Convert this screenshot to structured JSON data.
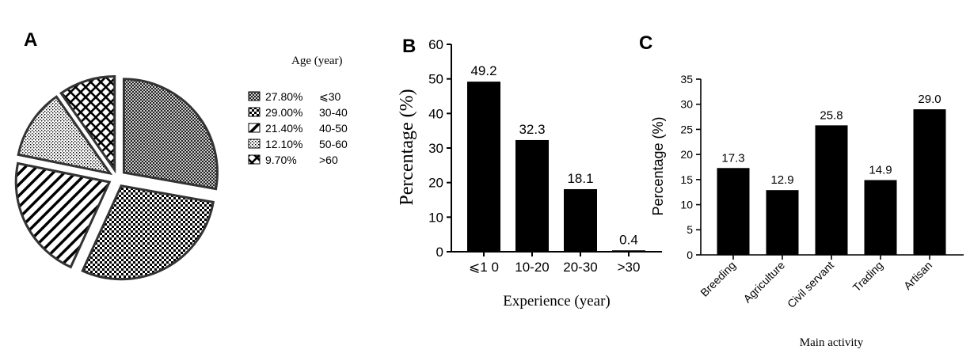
{
  "chart_data": [
    {
      "panel_label": "A",
      "type": "pie",
      "legend_title": "Age (year)",
      "legend_position": "right",
      "slices": [
        {
          "pct_label": "27.80%",
          "category": "⩽30",
          "value": 27.8,
          "pattern": "dense-crosshatch"
        },
        {
          "pct_label": "29.00%",
          "category": "30-40",
          "value": 29.0,
          "pattern": "checker"
        },
        {
          "pct_label": "21.40%",
          "category": "40-50",
          "value": 21.4,
          "pattern": "diagonal"
        },
        {
          "pct_label": "12.10%",
          "category": "50-60",
          "value": 12.1,
          "pattern": "dots"
        },
        {
          "pct_label": "9.70%",
          "category": ">60",
          "value": 9.7,
          "pattern": "grid"
        }
      ]
    },
    {
      "panel_label": "B",
      "type": "bar",
      "categories": [
        "⩽1 0",
        "10-20",
        "20-30",
        ">30"
      ],
      "values": [
        49.2,
        32.3,
        18.1,
        0.4
      ],
      "value_labels": [
        "49.2",
        "32.3",
        "18.1",
        "0.4"
      ],
      "xlabel": "Experience (year)",
      "ylabel": "Percentage (%)",
      "ylim": [
        0,
        60
      ],
      "yticks": [
        "0",
        "10",
        "20",
        "30",
        "40",
        "50",
        "60"
      ],
      "grid": false
    },
    {
      "panel_label": "C",
      "type": "bar",
      "categories": [
        "Breeding",
        "Agriculture",
        "Civil servant",
        "Trading",
        "Artisan"
      ],
      "values": [
        17.3,
        12.9,
        25.8,
        14.9,
        29.0
      ],
      "value_labels": [
        "17.3",
        "12.9",
        "25.8",
        "14.9",
        "29.0"
      ],
      "xlabel": "Main activity",
      "ylabel": "Percentage (%)",
      "ylim": [
        0,
        35
      ],
      "yticks": [
        "0",
        "5",
        "10",
        "15",
        "20",
        "25",
        "30",
        "35"
      ],
      "grid": false
    }
  ],
  "colors": {
    "bar": "#000000",
    "ink": "#000000",
    "background": "#ffffff"
  }
}
